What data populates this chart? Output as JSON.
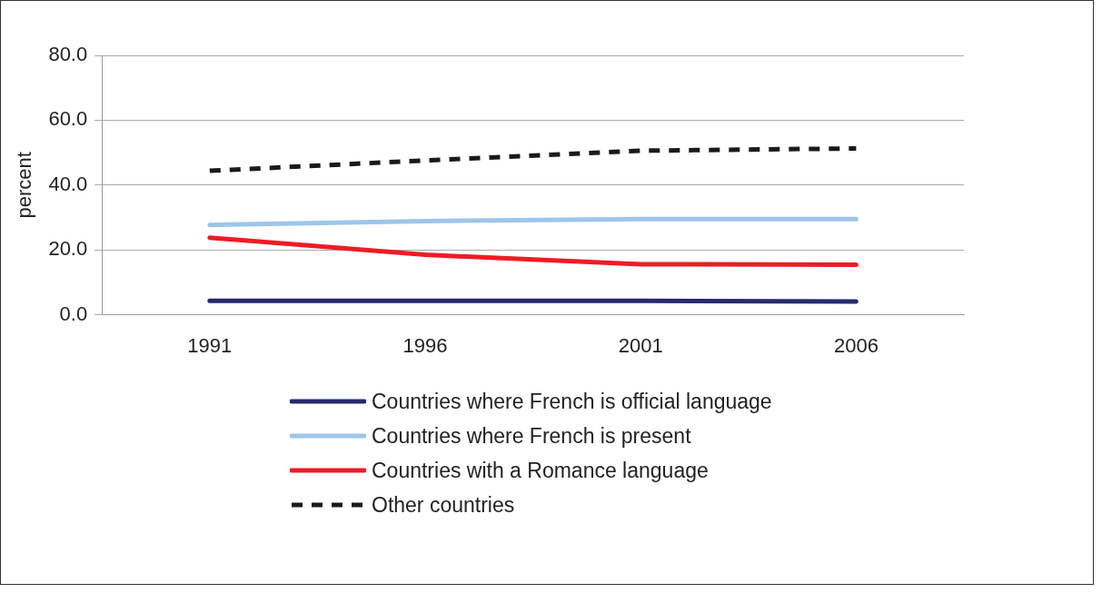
{
  "chart_data": {
    "type": "line",
    "ylabel": "percent",
    "categories": [
      "1991",
      "1996",
      "2001",
      "2006"
    ],
    "series": [
      {
        "name": "Countries where French is official language",
        "color": "#262a6e",
        "values": [
          4.3,
          4.3,
          4.3,
          4.1
        ]
      },
      {
        "name": "Countries where French is present",
        "color": "#9dc6ea",
        "values": [
          27.7,
          28.9,
          29.5,
          29.5
        ]
      },
      {
        "name": "Countries with a Romance language",
        "color": "#ee1c25",
        "values": [
          23.8,
          18.5,
          15.6,
          15.4
        ]
      },
      {
        "name": "Other countries",
        "color": "#1a1a1a",
        "values": [
          44.4,
          47.6,
          50.6,
          51.3
        ],
        "line_style": "dashed"
      }
    ],
    "ylim": [
      0,
      80
    ],
    "yticks": [
      {
        "value": 0,
        "label": "0.0"
      },
      {
        "value": 20,
        "label": "20.0"
      },
      {
        "value": 40,
        "label": "40.0"
      },
      {
        "value": 60,
        "label": "60.0"
      },
      {
        "value": 80,
        "label": "80.0"
      }
    ],
    "grid": "y",
    "legend": "bottom",
    "marker": "none"
  }
}
